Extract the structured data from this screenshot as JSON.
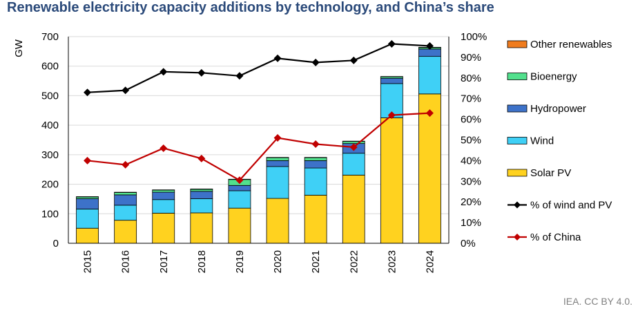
{
  "page": {
    "title": "Renewable electricity capacity additions by technology, and China’s share",
    "credit": "IEA. CC BY 4.0."
  },
  "chart_data": {
    "type": "bar",
    "stacked": true,
    "title": "Renewable electricity capacity additions by technology, and China’s share",
    "xlabel": "",
    "ylabel": "GW",
    "categories": [
      "2015",
      "2016",
      "2017",
      "2018",
      "2019",
      "2020",
      "2021",
      "2022",
      "2023",
      "2024"
    ],
    "ylim": [
      0,
      700
    ],
    "yticks": [
      0,
      100,
      200,
      300,
      400,
      500,
      600,
      700
    ],
    "y2lim": [
      0,
      100
    ],
    "y2ticks": [
      "0%",
      "10%",
      "20%",
      "30%",
      "40%",
      "50%",
      "60%",
      "70%",
      "80%",
      "90%",
      "100%"
    ],
    "grid": true,
    "legend_position": "right",
    "series": [
      {
        "name": "Solar PV",
        "color": "#ffd21f",
        "axis": "left",
        "values": [
          51,
          78,
          102,
          103,
          119,
          152,
          163,
          231,
          425,
          506
        ]
      },
      {
        "name": "Wind",
        "color": "#3fd0f6",
        "axis": "left",
        "values": [
          65,
          51,
          46,
          48,
          59,
          108,
          92,
          74,
          116,
          127
        ]
      },
      {
        "name": "Hydropower",
        "color": "#3d72c9",
        "axis": "left",
        "values": [
          35,
          35,
          25,
          25,
          18,
          20,
          25,
          33,
          18,
          25
        ]
      },
      {
        "name": "Bioenergy",
        "color": "#52e08d",
        "axis": "left",
        "values": [
          6,
          8,
          7,
          7,
          20,
          10,
          10,
          7,
          5,
          5
        ]
      },
      {
        "name": "Other renewables",
        "color": "#f07c1e",
        "axis": "left",
        "values": [
          1,
          1,
          1,
          1,
          1,
          1,
          1,
          1,
          1,
          1
        ]
      },
      {
        "name": "% of wind and PV",
        "type": "line",
        "color": "#000000",
        "marker": "diamond",
        "axis": "right",
        "values": [
          73,
          74,
          83,
          82.5,
          81,
          89.5,
          87.5,
          88.5,
          96.5,
          95.5
        ]
      },
      {
        "name": "% of China",
        "type": "line",
        "color": "#c00000",
        "marker": "diamond",
        "axis": "right",
        "values": [
          40,
          38,
          46,
          41,
          30.5,
          51,
          48,
          46.5,
          62,
          63
        ]
      }
    ],
    "legend_order": [
      "Other renewables",
      "Bioenergy",
      "Hydropower",
      "Wind",
      "Solar PV",
      "% of wind and PV",
      "% of China"
    ]
  }
}
